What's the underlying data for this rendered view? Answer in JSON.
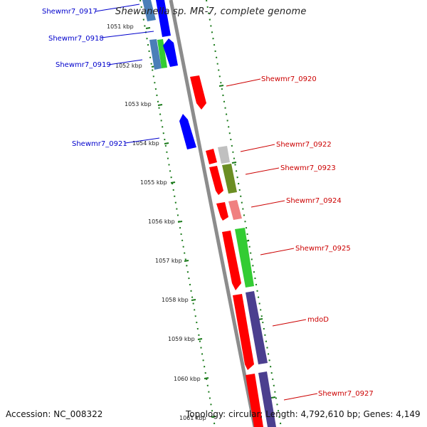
{
  "title": "Shewanella sp. MR-7, complete genome",
  "footer": {
    "accession": "Accession: NC_008322",
    "summary": "Topology: circular; Length: 4,792,610 bp; Genes: 4,149"
  },
  "colors": {
    "backbone": "#8c8c8c",
    "tick": "#1a7a1a",
    "left_label": "#0000cc",
    "right_label": "#cc0000",
    "red": "#ff0000",
    "blue": "#0000ff",
    "steel": "#4a7fb8",
    "green": "#33cc33",
    "olive": "#6b8e23",
    "pink": "#f08080",
    "grey": "#c0c0c0",
    "purple": "#4b3f8f"
  },
  "scale": {
    "unit": "kbp",
    "labels": [
      "1051 kbp",
      "1052 kbp",
      "1053 kbp",
      "1054 kbp",
      "1055 kbp",
      "1056 kbp",
      "1057 kbp",
      "1058 kbp",
      "1059 kbp",
      "1060 kbp",
      "1061 kbp"
    ]
  },
  "genes_left": [
    {
      "name": "Shewmr7_0917"
    },
    {
      "name": "Shewmr7_0918"
    },
    {
      "name": "Shewmr7_0919"
    },
    {
      "name": "Shewmr7_0921"
    }
  ],
  "genes_right": [
    {
      "name": "Shewmr7_0920"
    },
    {
      "name": "Shewmr7_0922"
    },
    {
      "name": "Shewmr7_0923"
    },
    {
      "name": "Shewmr7_0924"
    },
    {
      "name": "Shewmr7_0925"
    },
    {
      "name": "mdoD"
    },
    {
      "name": "Shewmr7_0927"
    }
  ]
}
